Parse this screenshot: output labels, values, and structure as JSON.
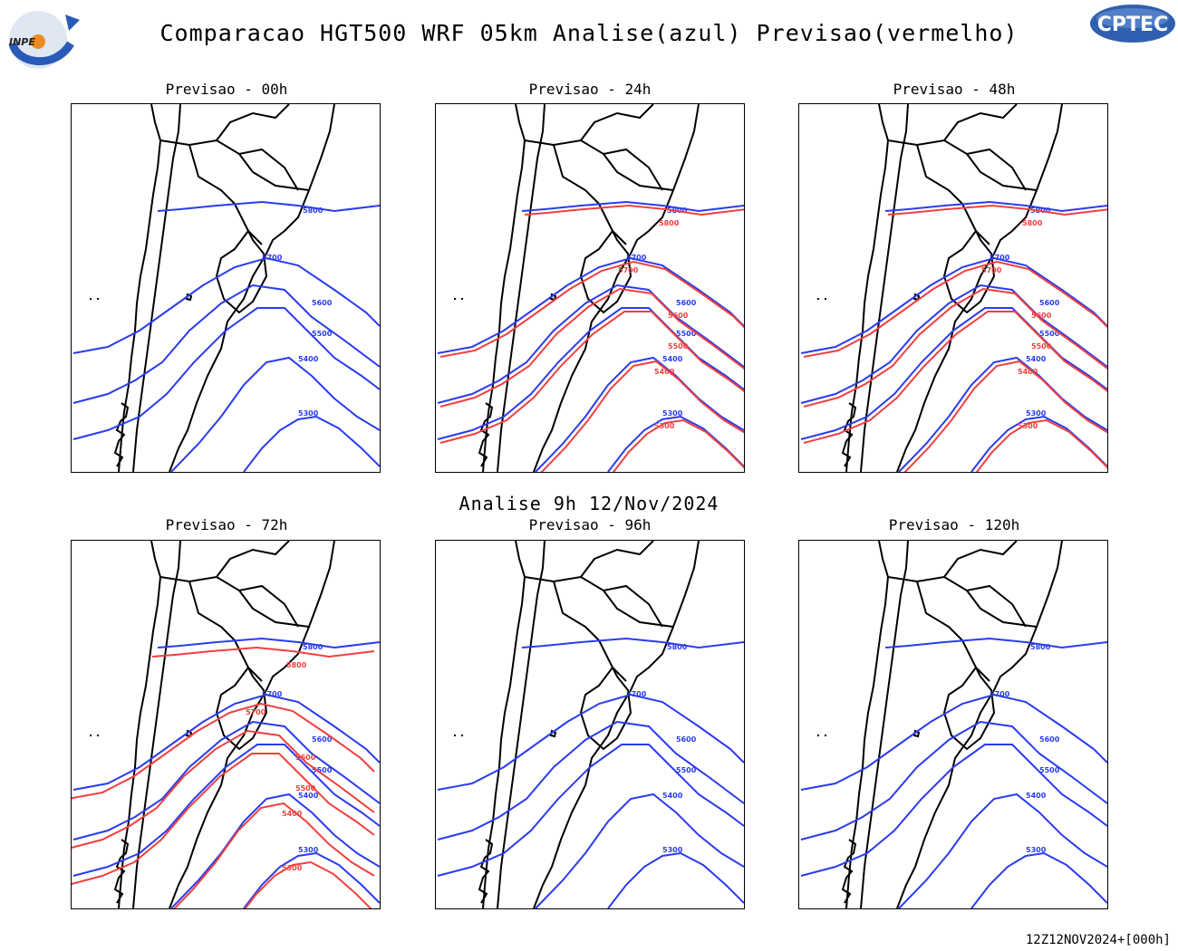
{
  "header": {
    "title": "Comparacao HGT500 WRF 05km Analise(azul) Previsao(vermelho)",
    "inpe_logo_text": "INPE",
    "cptec_logo_text": "CPTEC"
  },
  "analysis_label": "Analise 9h 12/Nov/2024",
  "footer": "12Z12NOV2024+[000h]",
  "colors": {
    "analysis": "#2a3cf0",
    "forecast": "#f04040",
    "coast": "#000000"
  },
  "contour_levels": [
    "5800",
    "5700",
    "5600",
    "5500",
    "5400",
    "5300"
  ],
  "panels": [
    {
      "id": "00h",
      "title": "Previsao - 00h",
      "has_forecast": false
    },
    {
      "id": "24h",
      "title": "Previsao - 24h",
      "has_forecast": true
    },
    {
      "id": "48h",
      "title": "Previsao - 48h",
      "has_forecast": true
    },
    {
      "id": "72h",
      "title": "Previsao - 72h",
      "has_forecast": true
    },
    {
      "id": "96h",
      "title": "Previsao - 96h",
      "has_forecast": false
    },
    {
      "id": "120h",
      "title": "Previsao - 120h",
      "has_forecast": false
    }
  ]
}
